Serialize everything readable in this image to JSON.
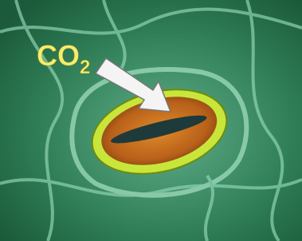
{
  "label": {
    "text": "CO",
    "subscript": "2"
  }
}
